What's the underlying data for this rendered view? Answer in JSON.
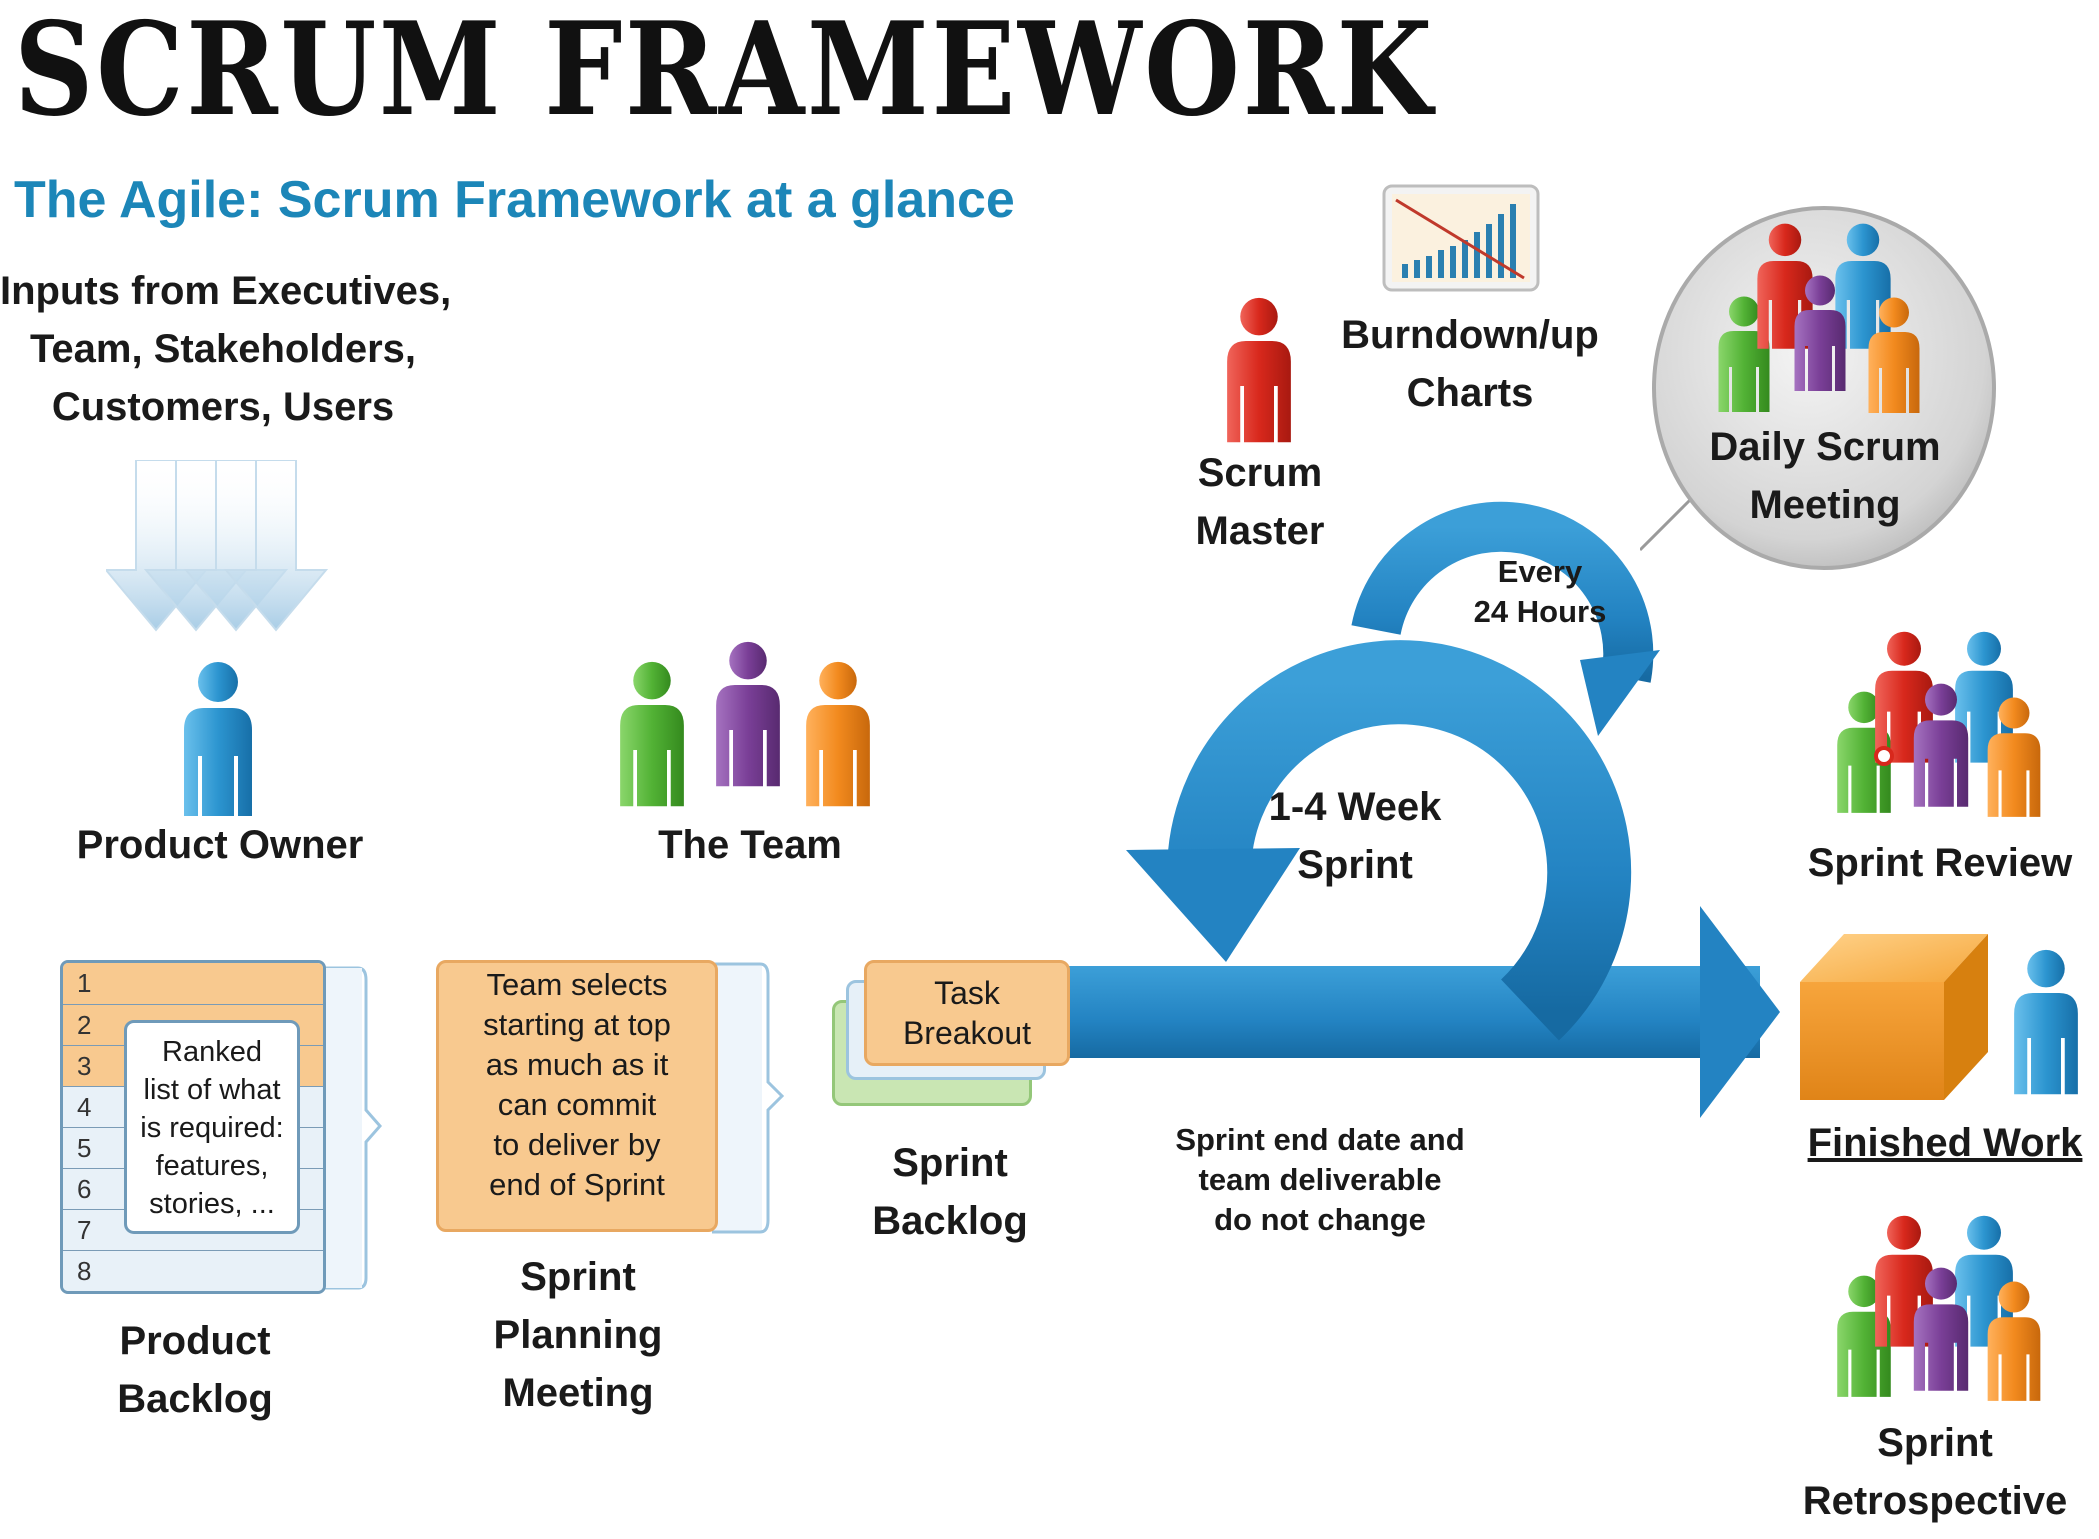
{
  "header": {
    "title": "SCRUM FRAMEWORK",
    "subtitle": "The Agile: Scrum Framework at a glance"
  },
  "inputs": {
    "line1": "Inputs from Executives,",
    "line2": "Team, Stakeholders,",
    "line3": "Customers, Users"
  },
  "roles": {
    "product_owner": "Product Owner",
    "the_team": "The Team",
    "scrum_master_1": "Scrum",
    "scrum_master_2": "Master"
  },
  "burndown": {
    "line1": "Burndown/up",
    "line2": "Charts"
  },
  "daily_scrum": {
    "line1": "Daily Scrum",
    "line2": "Meeting",
    "every_1": "Every",
    "every_2": "24 Hours"
  },
  "sprint_cycle": {
    "line1": "1-4 Week",
    "line2": "Sprint"
  },
  "product_backlog": {
    "rows": [
      "1",
      "2",
      "3",
      "4",
      "5",
      "6",
      "7",
      "8"
    ],
    "card_lines": [
      "Ranked",
      "list of what",
      "is required:",
      "features,",
      "stories, ..."
    ],
    "label_1": "Product",
    "label_2": "Backlog"
  },
  "sprint_planning": {
    "card_lines": [
      "Team selects",
      "starting at top",
      "as much as it",
      "can commit",
      "to deliver by",
      "end of Sprint"
    ],
    "label_1": "Sprint",
    "label_2": "Planning",
    "label_3": "Meeting"
  },
  "sprint_backlog": {
    "card_1": "Task",
    "card_2": "Breakout",
    "label_1": "Sprint",
    "label_2": "Backlog"
  },
  "sprint_note": {
    "line1": "Sprint end date and",
    "line2": "team deliverable",
    "line3": "do not change"
  },
  "outputs": {
    "review": "Sprint Review",
    "finished": "Finished Work",
    "retro_1": "Sprint",
    "retro_2": "Retrospective"
  },
  "colors": {
    "blue": "#2a8fc8",
    "arrow_blue": "#2383c2",
    "red": "#d8281c",
    "green": "#56b53a",
    "purple": "#7a3f97",
    "orange": "#f28a1e",
    "subtitle": "#1c86b8",
    "card_orange": "#f8c98f"
  }
}
